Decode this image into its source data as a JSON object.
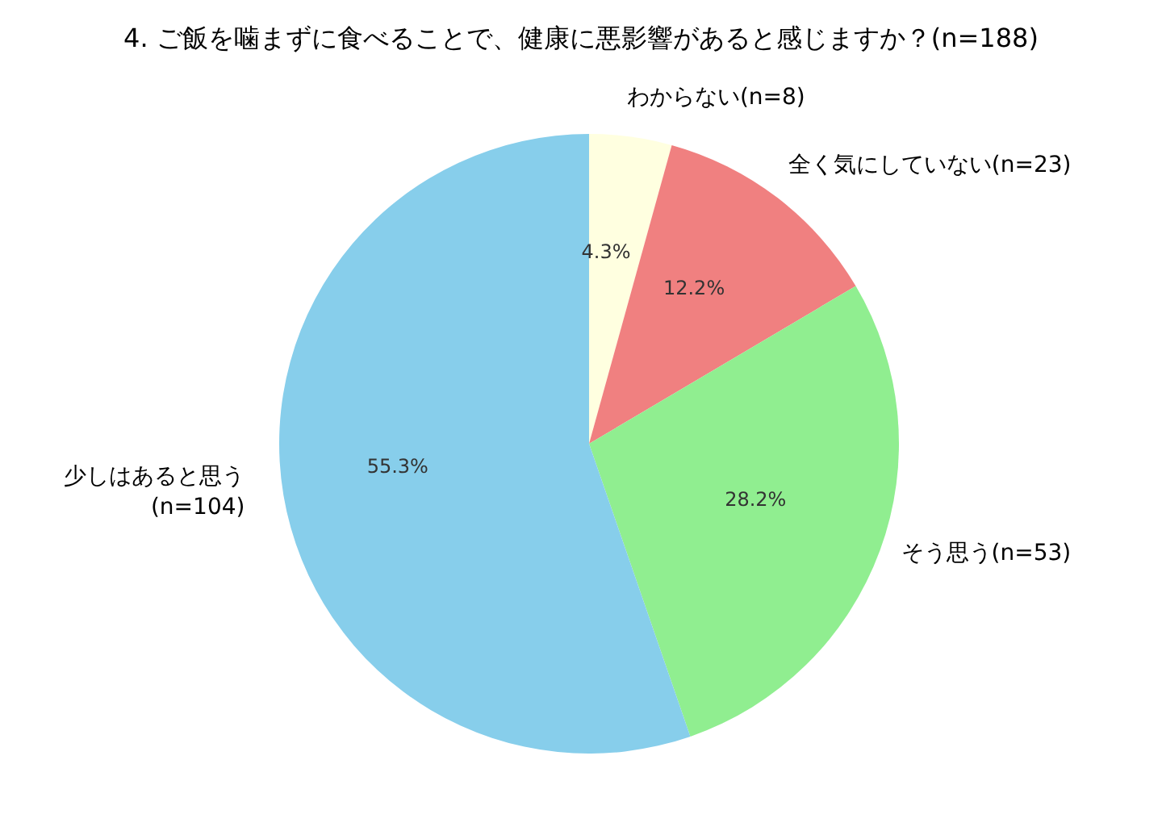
{
  "chart_data": {
    "type": "pie",
    "title": "4. ご飯を噛まずに食べることで、健康に悪影響があると感じますか？(n=188)",
    "categories": [
      "わからない(n=8)",
      "全く気にしていない(n=23)",
      "そう思う(n=53)",
      "少しはあると思う\n(n=104)"
    ],
    "values": [
      4.3,
      12.2,
      28.2,
      55.3
    ],
    "value_labels": [
      "4.3%",
      "12.2%",
      "28.2%",
      "55.3%"
    ],
    "colors": [
      "#ffffe0",
      "#f08080",
      "#90ee90",
      "#87ceeb"
    ]
  }
}
